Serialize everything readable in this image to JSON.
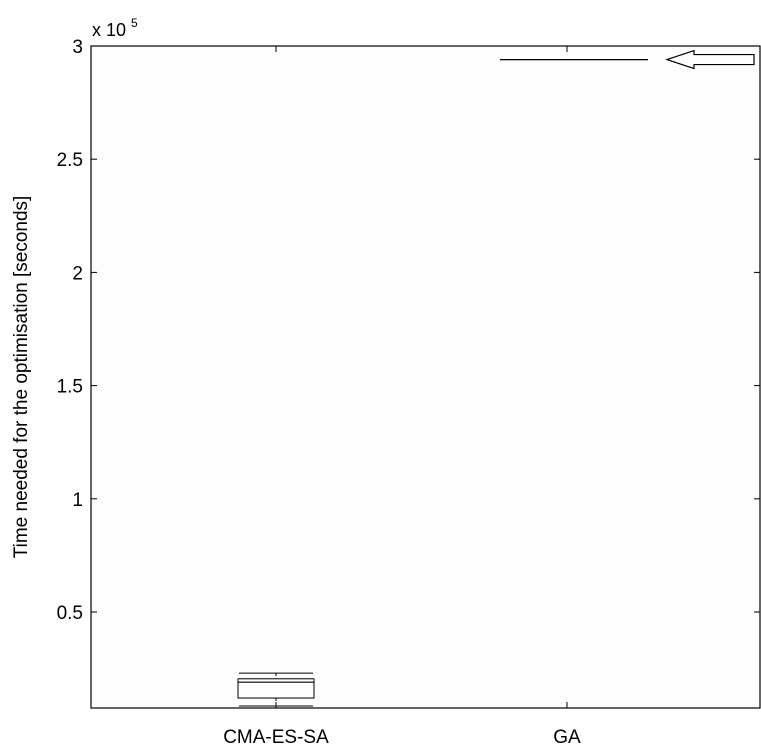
{
  "chart_data": {
    "type": "box",
    "title": "",
    "ylabel": "Time needed for the optimisation [seconds]",
    "xlabel": "",
    "exponent_label": {
      "base": "x 10",
      "power": "5"
    },
    "ylim": [
      8000,
      300000
    ],
    "yticks": [
      {
        "value": 50000,
        "label": "0.5"
      },
      {
        "value": 100000,
        "label": "1"
      },
      {
        "value": 150000,
        "label": "1.5"
      },
      {
        "value": 200000,
        "label": "2"
      },
      {
        "value": 250000,
        "label": "2.5"
      },
      {
        "value": 300000,
        "label": "3"
      }
    ],
    "categories": [
      "CMA-ES-SA",
      "GA"
    ],
    "boxes": [
      {
        "category": "CMA-ES-SA",
        "whisker_low": 8500,
        "q1": 12000,
        "median": 19000,
        "q3": 20500,
        "whisker_high": 23000
      },
      {
        "category": "GA",
        "whisker_low": 294000,
        "q1": 294000,
        "median": 294000,
        "q3": 294000,
        "whisker_high": 294000
      }
    ],
    "annotations": [
      {
        "type": "arrow",
        "points_to": "GA",
        "value": 294000,
        "direction": "left"
      }
    ],
    "grid": false,
    "background_color": "#fdfdfd",
    "line_color": "#000000"
  }
}
